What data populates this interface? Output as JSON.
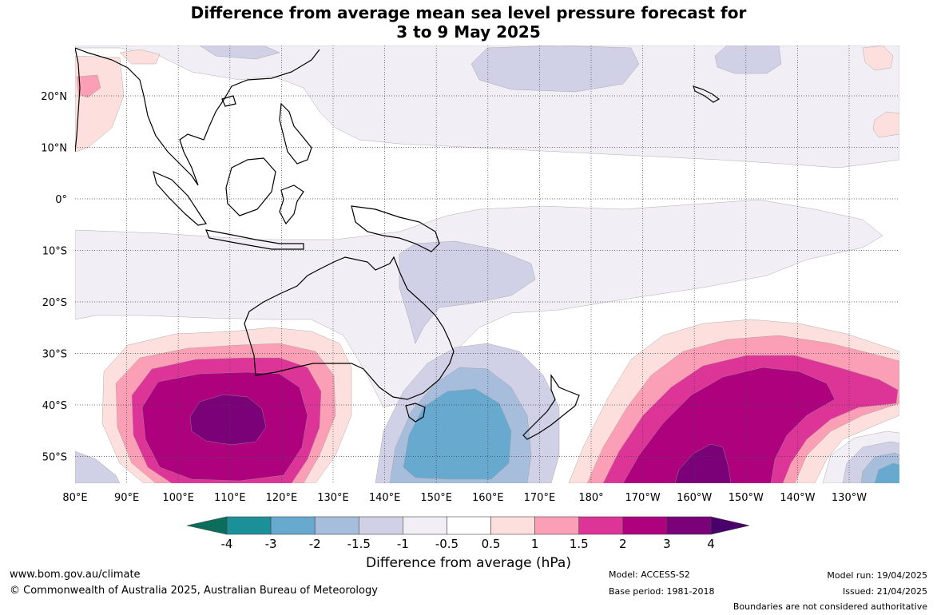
{
  "title_line1": "Difference from average mean sea level pressure forecast for",
  "title_line2": "3 to 9 May 2025",
  "lat_labels": [
    "20°N",
    "10°N",
    "0°",
    "10°S",
    "20°S",
    "30°S",
    "40°S",
    "50°S"
  ],
  "lon_labels": [
    "80°E",
    "90°E",
    "100°E",
    "110°E",
    "120°E",
    "130°E",
    "140°E",
    "150°E",
    "160°E",
    "170°E",
    "180°",
    "170°W",
    "160°W",
    "150°W",
    "140°W",
    "130°W"
  ],
  "colorbar": {
    "title": "Difference from average (hPa)",
    "tick_labels": [
      "-4",
      "-3",
      "-2",
      "-1.5",
      "-1",
      "-0.5",
      "0.5",
      "1",
      "1.5",
      "2",
      "3",
      "4"
    ],
    "colors": {
      "below_-4": "#0b6e5d",
      "-4_to_-3": "#1c9099",
      "-3_to_-2": "#67a9cf",
      "-2_to_-1.5": "#a6bddb",
      "-1.5_to_-1": "#d0d1e6",
      "-1_to_-0.5": "#f2eef6",
      "-0.5_to_0.5": "#ffffff",
      "0.5_to_1": "#fde0dd",
      "1_to_1.5": "#fa9fb5",
      "1.5_to_2": "#dd3497",
      "2_to_3": "#ae017e",
      "3_to_4": "#7a0177",
      "above_4": "#49006a"
    }
  },
  "footer": {
    "website": "www.bom.gov.au/climate",
    "copyright": "© Commonwealth of Australia 2025, Australian Bureau of Meteorology",
    "model": "Model: ACCESS-S2",
    "base_period": "Base period: 1981-2018",
    "model_run": "Model run: 19/04/2025",
    "issued": "Issued: 21/04/2025",
    "disclaimer": "Boundaries are not considered authoritative"
  }
}
